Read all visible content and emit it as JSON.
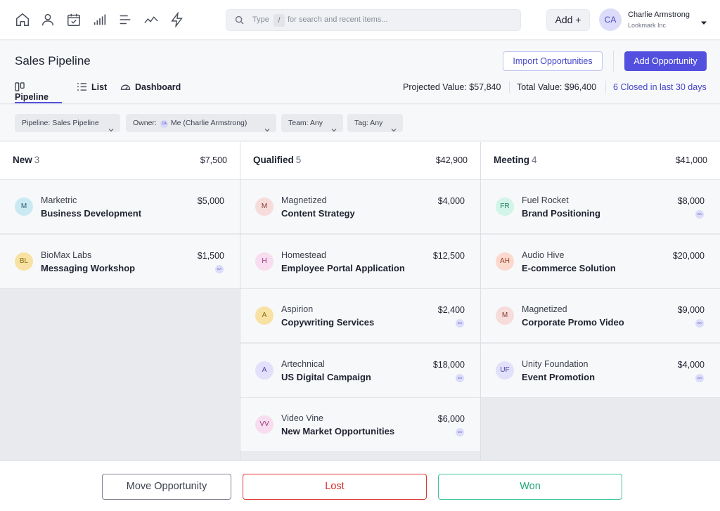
{
  "nav": {
    "icons": [
      "home-icon",
      "user-icon",
      "calendar-check-icon",
      "bar-chart-icon",
      "menu-icon",
      "trend-line-icon",
      "lightning-icon"
    ]
  },
  "search": {
    "type_label": "Type",
    "shortcut": "/",
    "placeholder": "for search and recent items..."
  },
  "add_button": {
    "label": "Add +"
  },
  "user": {
    "initials": "CA",
    "name": "Charlie Armstrong",
    "company": "Lookmark Inc"
  },
  "header": {
    "title": "Sales Pipeline",
    "import_button": "Import Opportunities",
    "add_opportunity_button": "Add Opportunity",
    "tabs": [
      {
        "label": "Pipeline",
        "active": true
      },
      {
        "label": "List",
        "active": false
      },
      {
        "label": "Dashboard",
        "active": false
      }
    ],
    "stats": {
      "projected": "Projected Value: $57,840",
      "total": "Total Value: $96,400",
      "closed": "6 Closed in last 30 days"
    }
  },
  "filters": {
    "pipeline": "Pipeline: Sales Pipeline",
    "owner_label": "Owner:",
    "owner_initials": "CA",
    "owner_value": "Me (Charlie Armstrong)",
    "team": "Team: Any",
    "tag": "Tag: Any"
  },
  "columns": [
    {
      "name": "New",
      "count": "3",
      "total": "$7,500",
      "cards": [
        {
          "initials": "M",
          "company": "Marketric",
          "name": "Business Development",
          "value": "$5,000",
          "owner": "",
          "avatar_bg": "#cbe9f3",
          "avatar_fg": "#2a5a73"
        },
        {
          "initials": "BL",
          "company": "BioMax Labs",
          "name": "Messaging Workshop",
          "value": "$1,500",
          "owner": "CA",
          "avatar_bg": "#f8e2a3",
          "avatar_fg": "#8a6a10"
        }
      ]
    },
    {
      "name": "Qualified",
      "count": "5",
      "total": "$42,900",
      "cards": [
        {
          "initials": "M",
          "company": "Magnetized",
          "name": "Content Strategy",
          "value": "$4,000",
          "owner": "",
          "avatar_bg": "#f6dcda",
          "avatar_fg": "#8a3a34"
        },
        {
          "initials": "H",
          "company": "Homestead",
          "name": "Employee Portal Application",
          "value": "$12,500",
          "owner": "",
          "avatar_bg": "#f8dcef",
          "avatar_fg": "#93387a"
        },
        {
          "initials": "A",
          "company": "Aspirion",
          "name": "Copywriting Services",
          "value": "$2,400",
          "owner": "CA",
          "avatar_bg": "#f8e2a3",
          "avatar_fg": "#8a6a10"
        },
        {
          "initials": "A",
          "company": "Artechnical",
          "name": "US Digital Campaign",
          "value": "$18,000",
          "owner": "CA",
          "avatar_bg": "#e2e0fa",
          "avatar_fg": "#4a46a8"
        },
        {
          "initials": "VV",
          "company": "Video Vine",
          "name": "New Market Opportunities",
          "value": "$6,000",
          "owner": "CA",
          "avatar_bg": "#f8dcef",
          "avatar_fg": "#93387a"
        }
      ]
    },
    {
      "name": "Meeting",
      "count": "4",
      "total": "$41,000",
      "cards": [
        {
          "initials": "FR",
          "company": "Fuel Rocket",
          "name": "Brand Positioning",
          "value": "$8,000",
          "owner": "CA",
          "avatar_bg": "#d3f4e8",
          "avatar_fg": "#1f7a5a"
        },
        {
          "initials": "AH",
          "company": "Audio Hive",
          "name": "E-commerce Solution",
          "value": "$20,000",
          "owner": "",
          "avatar_bg": "#fbd9cf",
          "avatar_fg": "#9a3f25"
        },
        {
          "initials": "M",
          "company": "Magnetized",
          "name": "Corporate Promo Video",
          "value": "$9,000",
          "owner": "CA",
          "avatar_bg": "#f6dcda",
          "avatar_fg": "#8a3a34"
        },
        {
          "initials": "UF",
          "company": "Unity Foundation",
          "name": "Event Promotion",
          "value": "$4,000",
          "owner": "CA",
          "avatar_bg": "#e2e0fa",
          "avatar_fg": "#4a46a8"
        }
      ]
    }
  ],
  "footer": {
    "move": "Move Opportunity",
    "lost": "Lost",
    "won": "Won"
  }
}
